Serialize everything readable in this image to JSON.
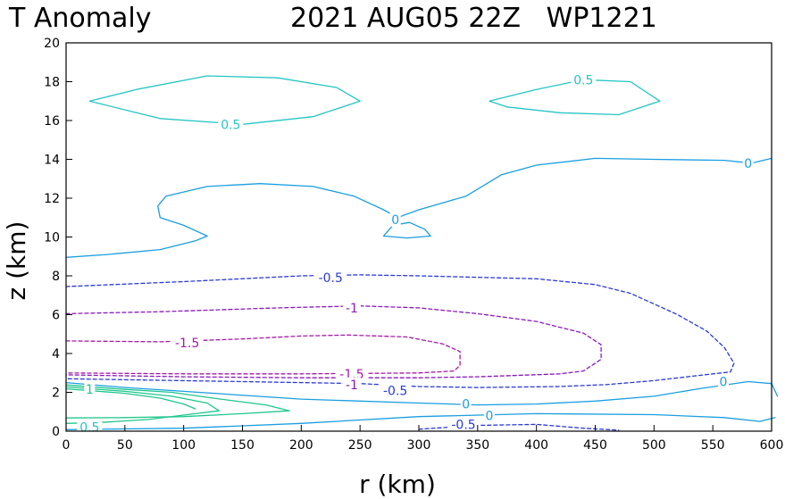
{
  "chart_data": {
    "type": "contour",
    "title_left": "T Anomaly",
    "title_right": "2021 AUG05 22Z   WP1221",
    "xlabel": "r (km)",
    "ylabel": "z (km)",
    "xlim": [
      0,
      600
    ],
    "ylim": [
      0,
      20
    ],
    "xticks": [
      0,
      50,
      100,
      150,
      200,
      250,
      300,
      350,
      400,
      450,
      500,
      550,
      600
    ],
    "yticks": [
      0,
      2,
      4,
      6,
      8,
      10,
      12,
      14,
      16,
      18,
      20
    ],
    "colors": {
      "c0.5": "#26c4c4",
      "c1": "#1ec78c",
      "c0": "#1a9ee0",
      "cm0.5": "#2a3ad8",
      "cm1": "#8a1ac0",
      "cm1.5": "#a61aa6"
    },
    "contours": [
      {
        "level": "0.5",
        "color_key": "c0.5",
        "dashed": false,
        "points": [
          [
            20,
            17
          ],
          [
            60,
            17.6
          ],
          [
            120,
            18.3
          ],
          [
            180,
            18.2
          ],
          [
            230,
            17.7
          ],
          [
            250,
            17.0
          ],
          [
            210,
            16.2
          ],
          [
            150,
            15.8
          ],
          [
            80,
            16.1
          ],
          [
            20,
            17
          ]
        ]
      },
      {
        "level": "0.5",
        "color_key": "c0.5",
        "dashed": false,
        "points": [
          [
            360,
            17
          ],
          [
            400,
            17.6
          ],
          [
            440,
            18.1
          ],
          [
            480,
            18.0
          ],
          [
            505,
            17.0
          ],
          [
            470,
            16.3
          ],
          [
            420,
            16.4
          ],
          [
            375,
            16.7
          ],
          [
            360,
            17
          ]
        ]
      },
      {
        "level": "0",
        "color_key": "c0",
        "dashed": false,
        "points": [
          [
            0,
            8.95
          ],
          [
            35,
            9.1
          ],
          [
            80,
            9.35
          ],
          [
            110,
            9.8
          ],
          [
            120,
            10.05
          ],
          [
            100,
            10.6
          ],
          [
            80,
            11.0
          ],
          [
            78,
            11.6
          ],
          [
            85,
            12.1
          ],
          [
            120,
            12.6
          ],
          [
            165,
            12.75
          ],
          [
            210,
            12.6
          ],
          [
            245,
            12.1
          ],
          [
            270,
            11.4
          ],
          [
            282,
            11.0
          ],
          [
            300,
            11.4
          ],
          [
            340,
            12.1
          ],
          [
            370,
            13.2
          ],
          [
            400,
            13.7
          ],
          [
            450,
            14.05
          ],
          [
            500,
            14.0
          ],
          [
            560,
            13.95
          ],
          [
            583,
            13.8
          ],
          [
            600,
            14.05
          ]
        ]
      },
      {
        "level": "0",
        "color_key": "c0",
        "dashed": false,
        "points": [
          [
            270,
            10.05
          ],
          [
            278,
            10.6
          ],
          [
            292,
            10.75
          ],
          [
            305,
            10.4
          ],
          [
            310,
            10.05
          ],
          [
            290,
            9.95
          ],
          [
            270,
            10.05
          ]
        ]
      },
      {
        "level": "0",
        "color_key": "c0",
        "dashed": false,
        "points": [
          [
            0,
            2.5
          ],
          [
            50,
            2.25
          ],
          [
            100,
            2.05
          ],
          [
            200,
            1.65
          ],
          [
            300,
            1.45
          ],
          [
            350,
            1.35
          ],
          [
            400,
            1.4
          ],
          [
            450,
            1.55
          ],
          [
            500,
            1.8
          ],
          [
            540,
            2.2
          ],
          [
            580,
            2.55
          ],
          [
            600,
            2.45
          ],
          [
            605,
            1.8
          ]
        ]
      },
      {
        "level": "0",
        "color_key": "c0",
        "dashed": false,
        "points": [
          [
            0,
            0.08
          ],
          [
            100,
            0.15
          ],
          [
            200,
            0.4
          ],
          [
            300,
            0.75
          ],
          [
            400,
            0.9
          ],
          [
            500,
            0.85
          ],
          [
            560,
            0.7
          ],
          [
            590,
            0.5
          ],
          [
            603,
            0.7
          ]
        ]
      },
      {
        "level": "1",
        "color_key": "c1",
        "dashed": false,
        "points": [
          [
            0,
            2.38
          ],
          [
            50,
            2.15
          ],
          [
            90,
            2.0
          ],
          [
            125,
            1.7
          ],
          [
            170,
            1.35
          ],
          [
            190,
            1.05
          ],
          [
            150,
            0.9
          ],
          [
            100,
            0.75
          ],
          [
            50,
            0.7
          ],
          [
            0,
            0.68
          ]
        ]
      },
      {
        "level": "1",
        "color_key": "c1",
        "dashed": false,
        "points": [
          [
            0,
            2.28
          ],
          [
            50,
            2.05
          ],
          [
            90,
            1.8
          ],
          [
            120,
            1.45
          ],
          [
            130,
            1.05
          ],
          [
            110,
            0.9
          ],
          [
            70,
            0.6
          ],
          [
            30,
            0.45
          ],
          [
            0,
            0.4
          ]
        ]
      },
      {
        "level": "1",
        "color_key": "c1",
        "dashed": false,
        "points": [
          [
            0,
            2.18
          ],
          [
            50,
            1.95
          ],
          [
            80,
            1.7
          ],
          [
            100,
            1.4
          ],
          [
            110,
            1.15
          ]
        ]
      },
      {
        "level": "-0.5",
        "color_key": "cm0.5",
        "dashed": true,
        "points": [
          [
            0,
            7.45
          ],
          [
            100,
            7.7
          ],
          [
            200,
            8.0
          ],
          [
            250,
            8.05
          ],
          [
            300,
            8.0
          ],
          [
            400,
            7.85
          ],
          [
            450,
            7.55
          ],
          [
            480,
            7.1
          ],
          [
            500,
            6.55
          ],
          [
            520,
            6.0
          ],
          [
            545,
            5.15
          ],
          [
            560,
            4.3
          ],
          [
            568,
            3.5
          ],
          [
            565,
            3.05
          ],
          [
            550,
            2.95
          ],
          [
            500,
            2.6
          ],
          [
            460,
            2.4
          ],
          [
            420,
            2.3
          ],
          [
            350,
            2.25
          ],
          [
            300,
            2.3
          ],
          [
            250,
            2.45
          ],
          [
            150,
            2.55
          ],
          [
            0,
            2.7
          ]
        ]
      },
      {
        "level": "-0.5",
        "color_key": "cm0.5",
        "dashed": true,
        "points": [
          [
            300,
            0.1
          ],
          [
            350,
            0.3
          ],
          [
            400,
            0.35
          ],
          [
            440,
            0.15
          ],
          [
            470,
            0.05
          ]
        ]
      },
      {
        "level": "-1",
        "color_key": "cm1",
        "dashed": true,
        "points": [
          [
            0,
            6.05
          ],
          [
            80,
            6.15
          ],
          [
            180,
            6.35
          ],
          [
            250,
            6.45
          ],
          [
            300,
            6.35
          ],
          [
            350,
            6.05
          ],
          [
            400,
            5.65
          ],
          [
            440,
            5.05
          ],
          [
            455,
            4.45
          ],
          [
            455,
            3.7
          ],
          [
            440,
            3.1
          ],
          [
            420,
            2.95
          ],
          [
            350,
            2.8
          ],
          [
            300,
            2.75
          ],
          [
            200,
            2.75
          ],
          [
            100,
            2.8
          ],
          [
            0,
            2.9
          ]
        ]
      },
      {
        "level": "-1.5",
        "color_key": "cm1.5",
        "dashed": true,
        "points": [
          [
            0,
            4.65
          ],
          [
            80,
            4.6
          ],
          [
            150,
            4.75
          ],
          [
            200,
            4.9
          ],
          [
            240,
            4.95
          ],
          [
            290,
            4.85
          ],
          [
            320,
            4.5
          ],
          [
            335,
            4.1
          ],
          [
            335,
            3.4
          ],
          [
            330,
            3.1
          ],
          [
            300,
            3.0
          ],
          [
            200,
            2.95
          ],
          [
            100,
            2.95
          ],
          [
            0,
            3.0
          ]
        ]
      }
    ],
    "contour_labels": [
      {
        "text": "0.5",
        "x": 140,
        "y": 15.8,
        "color_key": "c0.5"
      },
      {
        "text": "0.5",
        "x": 440,
        "y": 18.1,
        "color_key": "c0.5"
      },
      {
        "text": "0",
        "x": 280,
        "y": 10.9,
        "color_key": "c0"
      },
      {
        "text": "0",
        "x": 580,
        "y": 13.8,
        "color_key": "c0"
      },
      {
        "text": "0",
        "x": 559,
        "y": 2.55,
        "color_key": "c0"
      },
      {
        "text": "0",
        "x": 340,
        "y": 1.4,
        "color_key": "c0"
      },
      {
        "text": "0",
        "x": 360,
        "y": 0.8,
        "color_key": "c0"
      },
      {
        "text": "1",
        "x": 20,
        "y": 2.15,
        "color_key": "c1"
      },
      {
        "text": "0.5",
        "x": 20,
        "y": 0.2,
        "color_key": "c0.5"
      },
      {
        "text": "-0.5",
        "x": 225,
        "y": 7.9,
        "color_key": "cm0.5"
      },
      {
        "text": "-0.5",
        "x": 280,
        "y": 2.1,
        "color_key": "cm0.5"
      },
      {
        "text": "-0.5",
        "x": 338,
        "y": 0.35,
        "color_key": "cm0.5"
      },
      {
        "text": "-1",
        "x": 243,
        "y": 6.35,
        "color_key": "cm1"
      },
      {
        "text": "-1.5",
        "x": 103,
        "y": 4.55,
        "color_key": "cm1.5"
      },
      {
        "text": "-1.5",
        "x": 243,
        "y": 2.95,
        "color_key": "cm1.5"
      },
      {
        "text": "-1",
        "x": 243,
        "y": 2.4,
        "color_key": "cm1"
      }
    ]
  }
}
